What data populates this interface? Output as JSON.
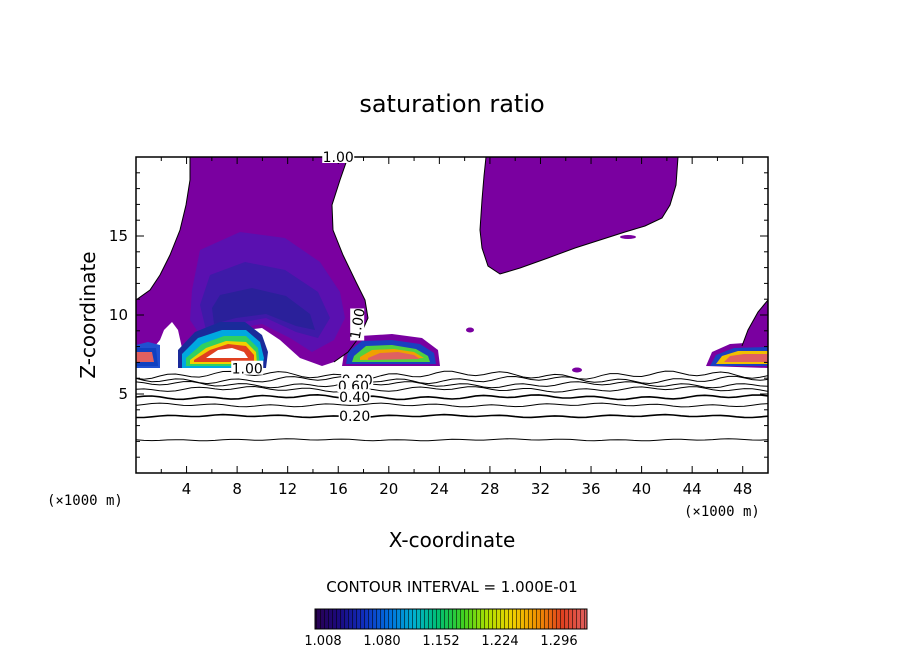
{
  "chart_data": {
    "type": "heatmap",
    "title": "saturation ratio",
    "xlabel": "X-coordinate",
    "ylabel": "Z-coordinate",
    "x_unit": "(×1000 m)",
    "y_unit": "(×1000 m)",
    "xlim": [
      0,
      50
    ],
    "ylim": [
      0,
      20
    ],
    "x_ticks": [
      4,
      8,
      12,
      16,
      20,
      24,
      28,
      32,
      36,
      40,
      44,
      48
    ],
    "y_ticks": [
      5,
      10,
      15
    ],
    "contour_interval_label": "CONTOUR INTERVAL = 1.000E-01",
    "colorbar": {
      "ticks": [
        "1.008",
        "1.080",
        "1.152",
        "1.224",
        "1.296"
      ],
      "min": 1.0,
      "max": 1.33,
      "colors": [
        "#2a0050",
        "#1a0a80",
        "#1030c0",
        "#0070e0",
        "#00b0d0",
        "#00c070",
        "#40d020",
        "#b0e000",
        "#f0d000",
        "#f09000",
        "#e04020",
        "#e06060"
      ]
    },
    "contour_labels": [
      {
        "value": "1.00",
        "x": 16.0,
        "y": 20.0
      },
      {
        "value": "1.00",
        "x": 17.5,
        "y": 9.4
      },
      {
        "value": "1.00",
        "x": 8.8,
        "y": 6.6
      },
      {
        "value": "0.80",
        "x": 17.5,
        "y": 5.9
      },
      {
        "value": "0.60",
        "x": 17.2,
        "y": 5.5
      },
      {
        "value": "0.40",
        "x": 17.3,
        "y": 4.8
      },
      {
        "value": "0.20",
        "x": 17.3,
        "y": 3.6
      }
    ],
    "contour_lines_z": [
      2.1,
      3.6,
      4.3,
      4.8,
      5.3,
      5.6,
      5.9,
      6.2
    ],
    "grid": false
  }
}
